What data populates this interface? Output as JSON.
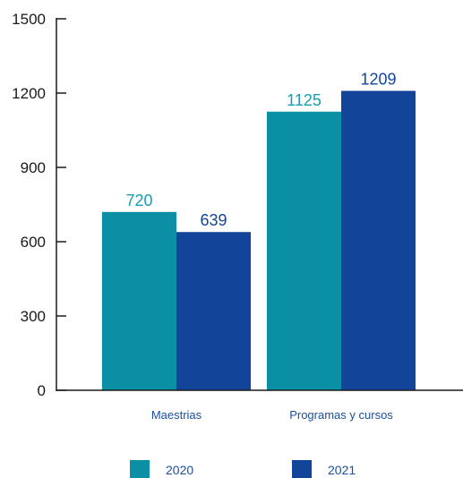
{
  "chart_data": {
    "type": "bar",
    "categories": [
      "Maestrias",
      "Programas y cursos"
    ],
    "series": [
      {
        "name": "2020",
        "values": [
          720,
          1125
        ],
        "color": "#0b8fa5",
        "label_color": "#1b9cb2"
      },
      {
        "name": "2021",
        "values": [
          639,
          1209
        ],
        "color": "#12449a",
        "label_color": "#12449a"
      }
    ],
    "ylim": [
      0,
      1500
    ],
    "yticks": [
      0,
      300,
      600,
      900,
      1200,
      1500
    ],
    "grid": false,
    "legend_position": "bottom-center",
    "title": "",
    "xlabel": "",
    "ylabel": ""
  }
}
